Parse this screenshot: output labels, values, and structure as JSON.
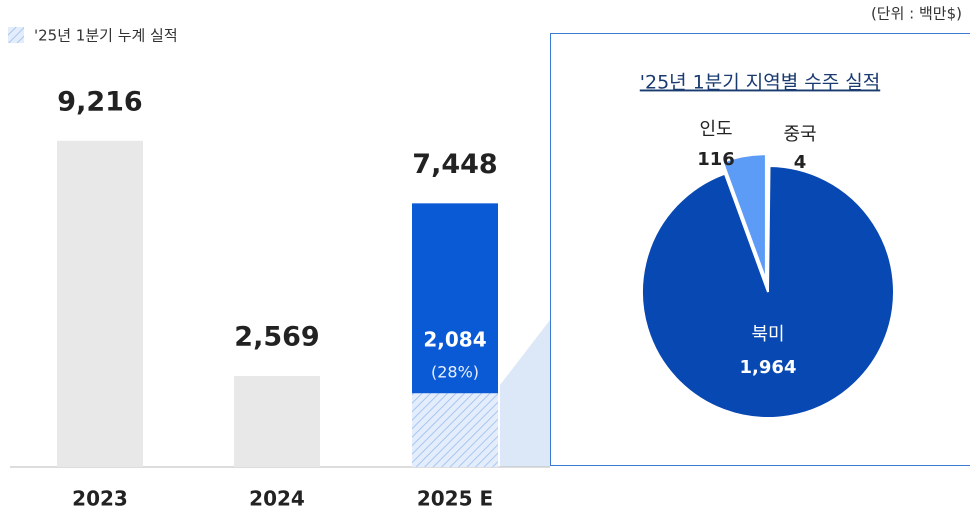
{
  "chart_data": [
    {
      "type": "bar",
      "unit_note": "(단위 : 백만$)",
      "categories": [
        "2023",
        "2024",
        "2025 E"
      ],
      "values": [
        9216,
        2569,
        7448
      ],
      "value_labels": [
        "9,216",
        "2,569",
        "7,448"
      ],
      "colors": [
        "#e8e8e8",
        "#e8e8e8",
        "#0a5ad6"
      ],
      "ylim": [
        0,
        10000
      ],
      "highlight": {
        "name": "'25년 1분기 누계 실적",
        "category": 2,
        "value": 2084,
        "value_label": "2,084",
        "share_label": "(28%)",
        "color": "#c9dcf5"
      }
    },
    {
      "type": "pie",
      "title": "'25년 1분기 지역별 수주 실적",
      "labels": [
        "중국",
        "북미",
        "인도"
      ],
      "values": [
        4,
        1964,
        116
      ],
      "value_labels": [
        "4",
        "1,964",
        "116"
      ],
      "colors": [
        "#7fb2f7",
        "#0848b2",
        "#5c9cf6"
      ]
    }
  ]
}
